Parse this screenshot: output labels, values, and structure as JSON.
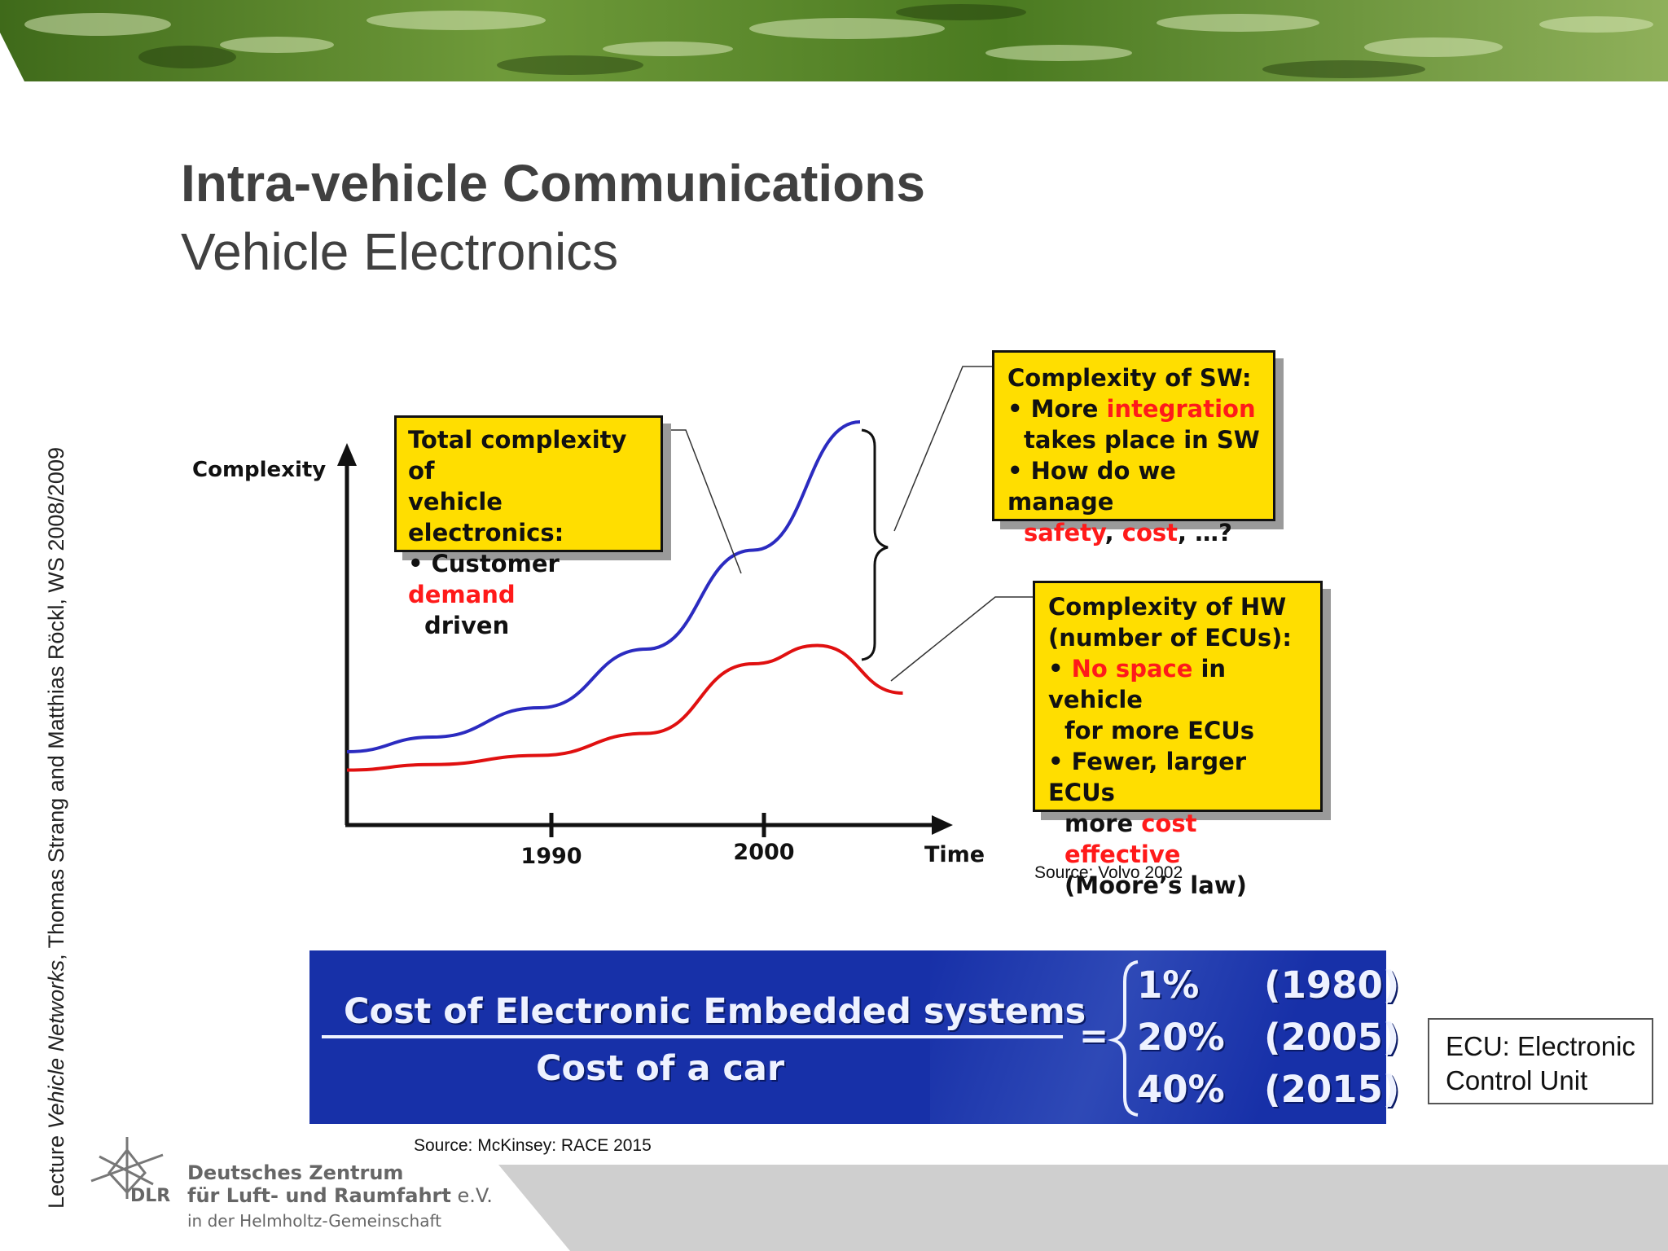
{
  "slide": {
    "title": "Intra-vehicle Communications",
    "subtitle": "Vehicle Electronics"
  },
  "side_credit": {
    "prefix": "Lecture ",
    "course": "Vehicle Networks",
    "rest": ", Thomas Strang and Matthias Röckl, WS 2008/2009"
  },
  "chart_data": {
    "type": "line",
    "title": "",
    "ylabel": "Complexity",
    "xlabel": "Time",
    "x_ticks": [
      "1990",
      "2000"
    ],
    "series": [
      {
        "name": "",
        "color": "#2b2bc0",
        "description_value_type": "relative",
        "x": [
          1981,
          1985,
          1990,
          1995,
          2000,
          2005
        ],
        "y": [
          10,
          14,
          22,
          38,
          65,
          100
        ]
      },
      {
        "name": "",
        "color": "#e01010",
        "description_value_type": "relative",
        "x": [
          1981,
          1985,
          1990,
          1995,
          2000,
          2003,
          2007
        ],
        "y": [
          5,
          6.5,
          9,
          15,
          34,
          39,
          26
        ]
      }
    ],
    "grid": false,
    "legend": "none"
  },
  "callouts": {
    "total": {
      "line1": "Total complexity of",
      "line2": "vehicle electronics:",
      "bullet_pre": "• Customer ",
      "bullet_red": "demand",
      "bullet_cont": "driven"
    },
    "sw": {
      "head": "Complexity of SW:",
      "b1_pre": "• More ",
      "b1_red": "integration",
      "b1_cont": "takes place in SW",
      "b2": "• How do we manage",
      "b2_red1": "safety",
      "b2_sep": ", ",
      "b2_red2": "cost",
      "b2_end": ", …?"
    },
    "hw": {
      "head1": "Complexity of HW",
      "head2": "(number of ECUs):",
      "b1_pre": "• ",
      "b1_red": "No space",
      "b1_post": " in vehicle",
      "b1_cont": "for more ECUs",
      "b2": "• Fewer, larger ECUs",
      "b2_cont_pre": "more ",
      "b2_cont_red": "cost effective",
      "b2_cont2": "(Moore’s law)"
    }
  },
  "sources": {
    "volvo": "Source: Volvo 2002",
    "mckinsey": "Source: McKinsey: RACE 2015"
  },
  "cost_box": {
    "numerator": "Cost of Electronic Embedded systems",
    "denominator": "Cost of a car",
    "equals": "=",
    "rows": [
      {
        "pct": "1%",
        "year": "(1980)"
      },
      {
        "pct": "20%",
        "year": "(2005)"
      },
      {
        "pct": "40%",
        "year": "(2015)"
      }
    ]
  },
  "ecu_note": {
    "line1": "ECU: Electronic",
    "line2": "Control Unit"
  },
  "logo": {
    "abbr": "DLR",
    "line1": "Deutsches Zentrum",
    "line2": "für Luft- und Raumfahrt",
    "line2_suffix": "e.V.",
    "line3": "in der Helmholtz-Gemeinschaft"
  },
  "colors": {
    "title_gray": "#404040",
    "callout_yellow": "#ffde00",
    "accent_red": "#ff1a1a",
    "cost_box_blue": "#1730a8",
    "banner_green": "#5a8a2a"
  }
}
